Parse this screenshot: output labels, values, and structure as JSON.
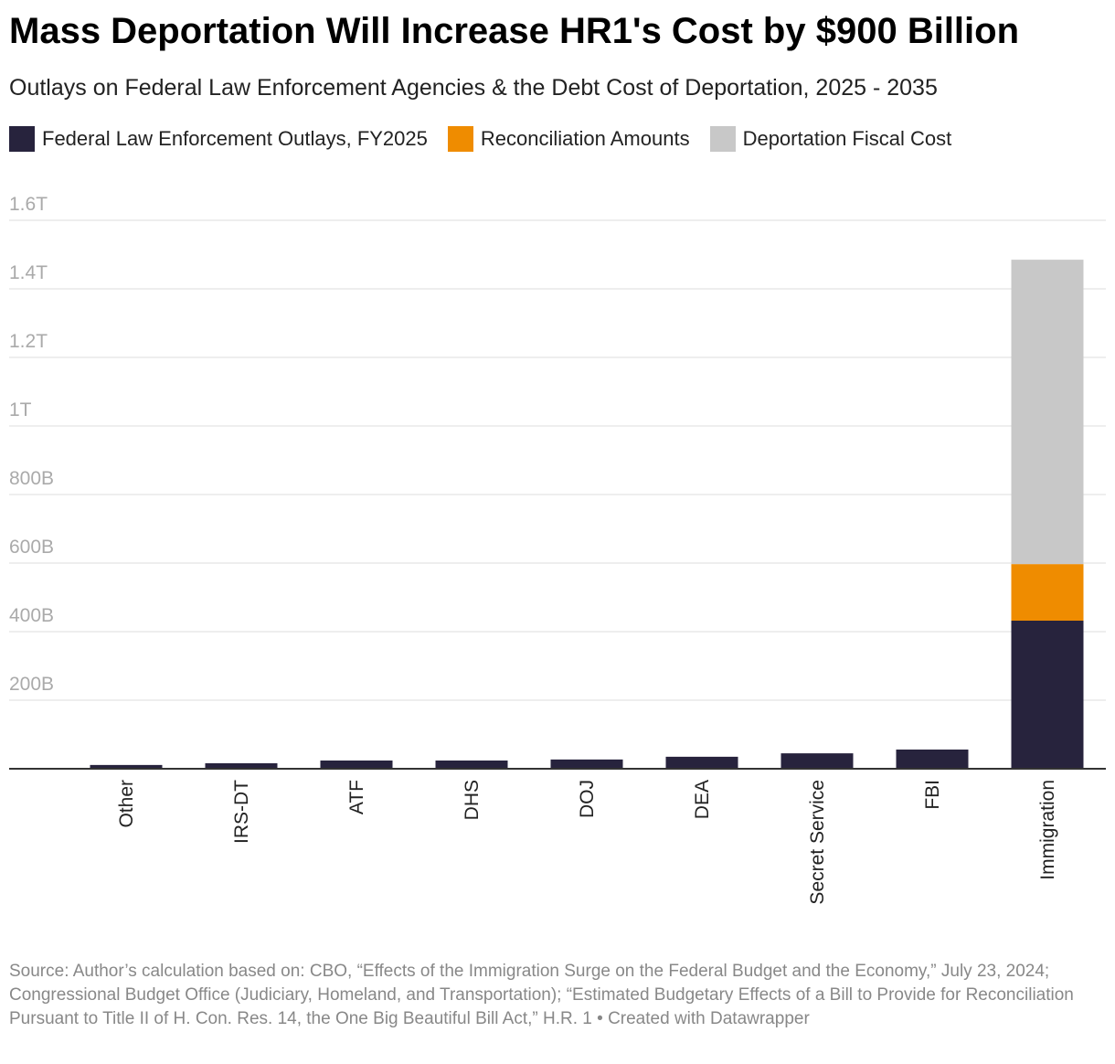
{
  "chart_data": {
    "type": "stacked_bar",
    "title": "Mass Deportation Will Increase HR1's Cost by $900 Billion",
    "subtitle": "Outlays on Federal Law Enforcement Agencies & the Debt Cost of Deportation, 2025 - 2035",
    "categories": [
      "Other",
      "IRS-DT",
      "ATF",
      "DHS",
      "DOJ",
      "DEA",
      "Secret Service",
      "FBI",
      "Immigration"
    ],
    "series": [
      {
        "name": "Federal Law Enforcement Outlays, FY2025",
        "color": "#27233d",
        "values": [
          11,
          16,
          24,
          24,
          27,
          35,
          45,
          56,
          432
        ]
      },
      {
        "name": "Reconciliation Amounts",
        "color": "#ef8c00",
        "values": [
          null,
          null,
          null,
          null,
          null,
          null,
          null,
          null,
          165
        ]
      },
      {
        "name": "Deportation Fiscal Cost",
        "color": "#c8c8c8",
        "values": [
          null,
          null,
          null,
          null,
          null,
          null,
          null,
          null,
          888
        ]
      }
    ],
    "ylim": [
      0,
      1600
    ],
    "yticks": [
      {
        "value": 200,
        "label": "200B"
      },
      {
        "value": 400,
        "label": "400B"
      },
      {
        "value": 600,
        "label": "600B"
      },
      {
        "value": 800,
        "label": "800B"
      },
      {
        "value": 1000,
        "label": "1T"
      },
      {
        "value": 1200,
        "label": "1.2T"
      },
      {
        "value": 1400,
        "label": "1.4T"
      },
      {
        "value": 1600,
        "label": "1.6T"
      }
    ],
    "grid": true,
    "source": "Source: Author’s calculation based on: CBO, “Effects of the Immigration Surge on the Federal Budget and the Economy,” July 23, 2024; Congressional Budget Office (Judiciary, Homeland, and Transportation); “Estimated Budgetary Effects of a Bill to Provide for Reconciliation Pursuant to Title II of H. Con. Res. 14, the One Big Beautiful Bill Act,” H.R. 1 • Created with Datawrapper"
  }
}
